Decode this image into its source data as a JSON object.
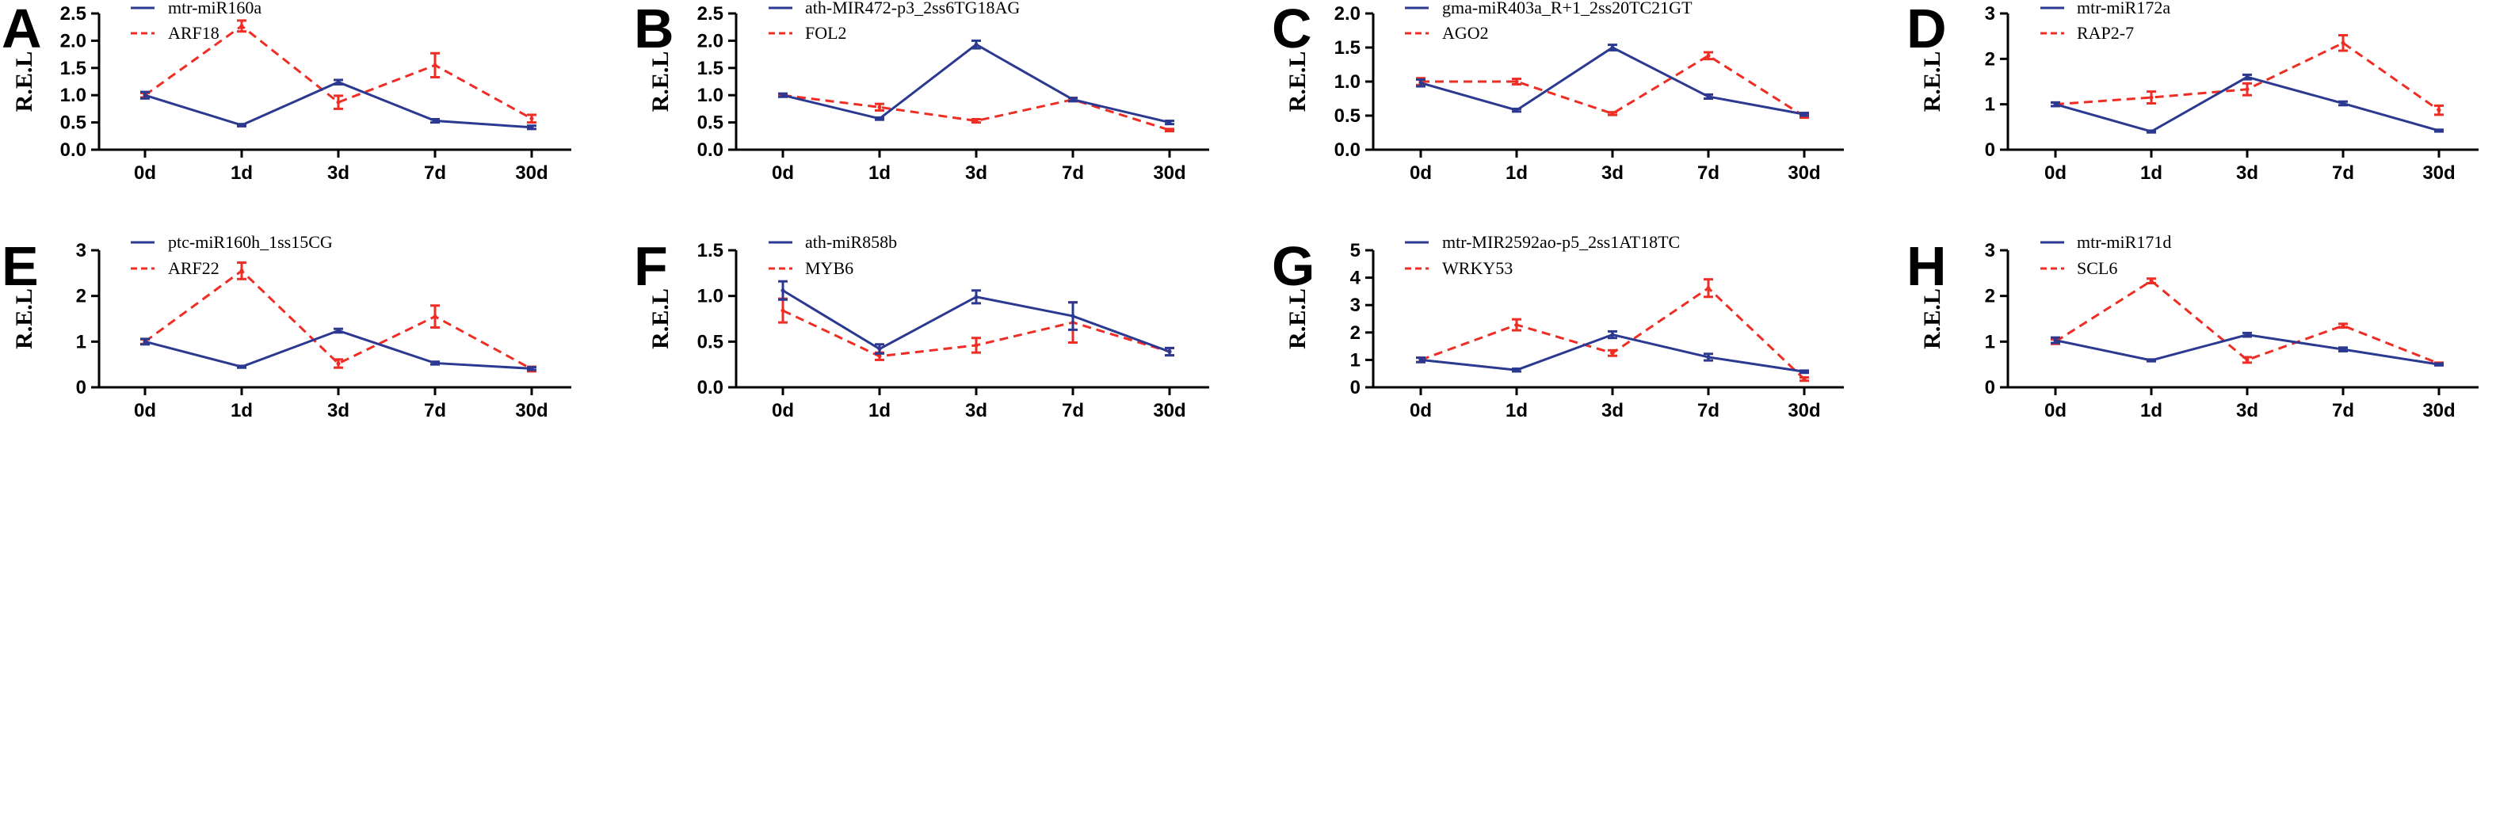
{
  "figure": {
    "ylabel": "R.E.L",
    "categories": [
      "0d",
      "1d",
      "3d",
      "7d",
      "30d"
    ],
    "series_colors": {
      "mirna": "#2b3990",
      "target": "#ee2d24"
    }
  },
  "chart_data": [
    {
      "panel": "A",
      "type": "line",
      "categories": [
        "0d",
        "1d",
        "3d",
        "7d",
        "30d"
      ],
      "ylabel": "R.E.L",
      "ylim": [
        0,
        2.5
      ],
      "yticks": [
        "0.0",
        "0.5",
        "1.0",
        "1.5",
        "2.0",
        "2.5"
      ],
      "series": [
        {
          "name": "mtr-miR160a",
          "style": "solid",
          "values": [
            1.0,
            0.45,
            1.24,
            0.53,
            0.41
          ],
          "errors": [
            0.06,
            0.02,
            0.04,
            0.03,
            0.03
          ]
        },
        {
          "name": "ARF18",
          "style": "dashed",
          "values": [
            1.0,
            2.27,
            0.87,
            1.55,
            0.57
          ],
          "errors": [
            0.04,
            0.1,
            0.12,
            0.22,
            0.07
          ]
        }
      ]
    },
    {
      "panel": "B",
      "type": "line",
      "categories": [
        "0d",
        "1d",
        "3d",
        "7d",
        "30d"
      ],
      "ylabel": "R.E.L",
      "ylim": [
        0,
        2.5
      ],
      "yticks": [
        "0.0",
        "0.5",
        "1.0",
        "1.5",
        "2.0",
        "2.5"
      ],
      "series": [
        {
          "name": "ath-MIR472-p3_2ss6TG18AG",
          "style": "solid",
          "values": [
            1.0,
            0.57,
            1.93,
            0.92,
            0.5
          ],
          "errors": [
            0.03,
            0.02,
            0.07,
            0.03,
            0.03
          ]
        },
        {
          "name": "FOL2",
          "style": "dashed",
          "values": [
            1.0,
            0.78,
            0.53,
            0.92,
            0.36
          ],
          "errors": [
            0.02,
            0.06,
            0.03,
            0.03,
            0.02
          ]
        }
      ]
    },
    {
      "panel": "C",
      "type": "line",
      "categories": [
        "0d",
        "1d",
        "3d",
        "7d",
        "30d"
      ],
      "ylabel": "R.E.L",
      "ylim": [
        0,
        2.0
      ],
      "yticks": [
        "0.0",
        "0.5",
        "1.0",
        "1.5",
        "2.0"
      ],
      "series": [
        {
          "name": "gma-miR403a_R+1_2ss20TC21GT",
          "style": "solid",
          "values": [
            0.98,
            0.58,
            1.5,
            0.78,
            0.52
          ],
          "errors": [
            0.05,
            0.02,
            0.04,
            0.03,
            0.02
          ]
        },
        {
          "name": "AGO2",
          "style": "dashed",
          "values": [
            1.0,
            1.0,
            0.53,
            1.38,
            0.49
          ],
          "errors": [
            0.05,
            0.04,
            0.02,
            0.05,
            0.02
          ]
        }
      ]
    },
    {
      "panel": "D",
      "type": "line",
      "categories": [
        "0d",
        "1d",
        "3d",
        "7d",
        "30d"
      ],
      "ylabel": "R.E.L",
      "ylim": [
        0,
        3
      ],
      "yticks": [
        "0",
        "1",
        "2",
        "3"
      ],
      "series": [
        {
          "name": "mtr-miR172a",
          "style": "solid",
          "values": [
            1.0,
            0.4,
            1.6,
            1.02,
            0.42
          ],
          "errors": [
            0.04,
            0.02,
            0.05,
            0.04,
            0.02
          ]
        },
        {
          "name": "RAP2-7",
          "style": "dashed",
          "values": [
            1.0,
            1.15,
            1.33,
            2.35,
            0.87
          ],
          "errors": [
            0.04,
            0.13,
            0.13,
            0.17,
            0.1
          ]
        }
      ]
    },
    {
      "panel": "E",
      "type": "line",
      "categories": [
        "0d",
        "1d",
        "3d",
        "7d",
        "30d"
      ],
      "ylabel": "R.E.L",
      "ylim": [
        0,
        3
      ],
      "yticks": [
        "0",
        "1",
        "2",
        "3"
      ],
      "series": [
        {
          "name": "ptc-miR160h_1ss15CG",
          "style": "solid",
          "values": [
            1.0,
            0.45,
            1.24,
            0.53,
            0.41
          ],
          "errors": [
            0.06,
            0.02,
            0.04,
            0.03,
            0.03
          ]
        },
        {
          "name": "ARF22",
          "style": "dashed",
          "values": [
            1.0,
            2.55,
            0.52,
            1.55,
            0.4
          ],
          "errors": [
            0.05,
            0.18,
            0.09,
            0.24,
            0.05
          ]
        }
      ]
    },
    {
      "panel": "F",
      "type": "line",
      "categories": [
        "0d",
        "1d",
        "3d",
        "7d",
        "30d"
      ],
      "ylabel": "R.E.L",
      "ylim": [
        0,
        1.5
      ],
      "yticks": [
        "0.0",
        "0.5",
        "1.0",
        "1.5"
      ],
      "series": [
        {
          "name": "ath-miR858b",
          "style": "solid",
          "values": [
            1.06,
            0.42,
            0.99,
            0.78,
            0.39
          ],
          "errors": [
            0.1,
            0.05,
            0.07,
            0.15,
            0.04
          ]
        },
        {
          "name": "MYB6",
          "style": "dashed",
          "values": [
            0.84,
            0.34,
            0.46,
            0.71,
            0.39
          ],
          "errors": [
            0.13,
            0.04,
            0.08,
            0.22,
            0.04
          ]
        }
      ]
    },
    {
      "panel": "G",
      "type": "line",
      "categories": [
        "0d",
        "1d",
        "3d",
        "7d",
        "30d"
      ],
      "ylabel": "R.E.L",
      "ylim": [
        0,
        5
      ],
      "yticks": [
        "0",
        "1",
        "2",
        "3",
        "4",
        "5"
      ],
      "series": [
        {
          "name": "mtr-MIR2592ao-p5_2ss1AT18TC",
          "style": "solid",
          "values": [
            1.0,
            0.63,
            1.92,
            1.1,
            0.57
          ],
          "errors": [
            0.08,
            0.05,
            0.12,
            0.12,
            0.04
          ]
        },
        {
          "name": "WRKY53",
          "style": "dashed",
          "values": [
            1.0,
            2.28,
            1.25,
            3.62,
            0.3
          ],
          "errors": [
            0.08,
            0.2,
            0.1,
            0.32,
            0.06
          ]
        }
      ]
    },
    {
      "panel": "H",
      "type": "line",
      "categories": [
        "0d",
        "1d",
        "3d",
        "7d",
        "30d"
      ],
      "ylabel": "R.E.L",
      "ylim": [
        0,
        3
      ],
      "yticks": [
        "0",
        "1",
        "2",
        "3"
      ],
      "series": [
        {
          "name": "mtr-miR171d",
          "style": "solid",
          "values": [
            1.03,
            0.59,
            1.15,
            0.83,
            0.5
          ],
          "errors": [
            0.06,
            0.02,
            0.04,
            0.04,
            0.02
          ]
        },
        {
          "name": "SCL6",
          "style": "dashed",
          "values": [
            1.0,
            2.33,
            0.6,
            1.35,
            0.52
          ],
          "errors": [
            0.05,
            0.05,
            0.06,
            0.04,
            0.02
          ]
        }
      ]
    }
  ]
}
